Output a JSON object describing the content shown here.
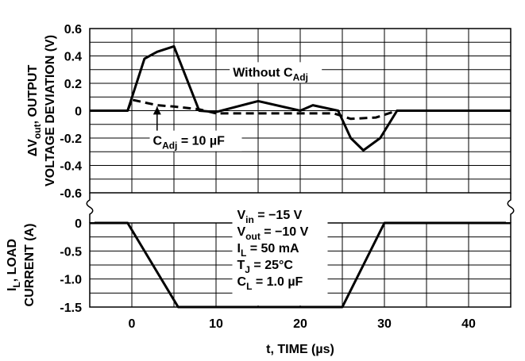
{
  "chart_data": [
    {
      "type": "line",
      "panel": "top",
      "ylabel_lines": [
        "ΔVout, OUTPUT",
        "VOLTAGE DEVIATION (V)"
      ],
      "ylim": [
        -0.6,
        0.6
      ],
      "yticks": [
        0.6,
        0.4,
        0.2,
        0,
        -0.2,
        -0.4,
        -0.6
      ],
      "ytick_labels": [
        "0.6",
        "0.4",
        "0.2",
        "0",
        "-0.2",
        "-0.4",
        "-0.6"
      ],
      "xlim": [
        -5,
        45
      ],
      "grid": true,
      "series": [
        {
          "name": "Without C_Adj",
          "style": "solid",
          "x": [
            -5,
            -0.5,
            1.5,
            3,
            5,
            8,
            10,
            15,
            20,
            21.5,
            24.5,
            26,
            27.5,
            29.5,
            31.5,
            45
          ],
          "y": [
            0,
            0,
            0.38,
            0.43,
            0.47,
            0,
            -0.01,
            0.07,
            0,
            0.04,
            0,
            -0.2,
            -0.29,
            -0.2,
            0,
            0
          ]
        },
        {
          "name": "C_Adj = 10 µF",
          "style": "dashed",
          "x": [
            -0.5,
            0,
            3,
            5,
            8,
            10,
            20,
            24,
            26,
            29,
            31.5
          ],
          "y": [
            0,
            0.08,
            0.04,
            0.03,
            0.01,
            -0.02,
            -0.02,
            -0.02,
            -0.06,
            -0.05,
            0
          ]
        }
      ],
      "annotations": [
        {
          "text": "Without C",
          "sub": "Adj",
          "x": 12,
          "y": 0.25
        },
        {
          "text": "C",
          "sub": "Adj",
          "tail": " = 10 µF",
          "x": 2.5,
          "y": -0.25
        }
      ]
    },
    {
      "type": "line",
      "panel": "bottom",
      "ylabel_lines": [
        "I_L, LOAD",
        "CURRENT (A)"
      ],
      "ylim": [
        -1.5,
        0
      ],
      "yticks": [
        0,
        -0.5,
        -1.0,
        -1.5
      ],
      "ytick_labels": [
        "0",
        "-0.5",
        "-1.0",
        "-1.5"
      ],
      "xlim": [
        -5,
        45
      ],
      "xticks": [
        0,
        10,
        20,
        30,
        40
      ],
      "xtick_labels": [
        "0",
        "10",
        "20",
        "30",
        "40"
      ],
      "xlabel": "t, TIME (µs)",
      "grid": true,
      "series": [
        {
          "name": "Load current",
          "style": "solid",
          "x": [
            -5,
            -0.5,
            5.5,
            25,
            30,
            45
          ],
          "y": [
            0,
            0,
            -1.5,
            -1.5,
            0,
            0
          ]
        }
      ],
      "conditions": [
        {
          "main": "V",
          "sub": "in",
          "tail": " = −15 V"
        },
        {
          "main": "V",
          "sub": "out",
          "tail": " = −10 V"
        },
        {
          "main": "I",
          "sub": "L",
          "tail": " = 50 mA"
        },
        {
          "main": "T",
          "sub": "J",
          "tail": " = 25°C"
        },
        {
          "main": "C",
          "sub": "L",
          "tail": " = 1.0 µF"
        }
      ]
    }
  ]
}
